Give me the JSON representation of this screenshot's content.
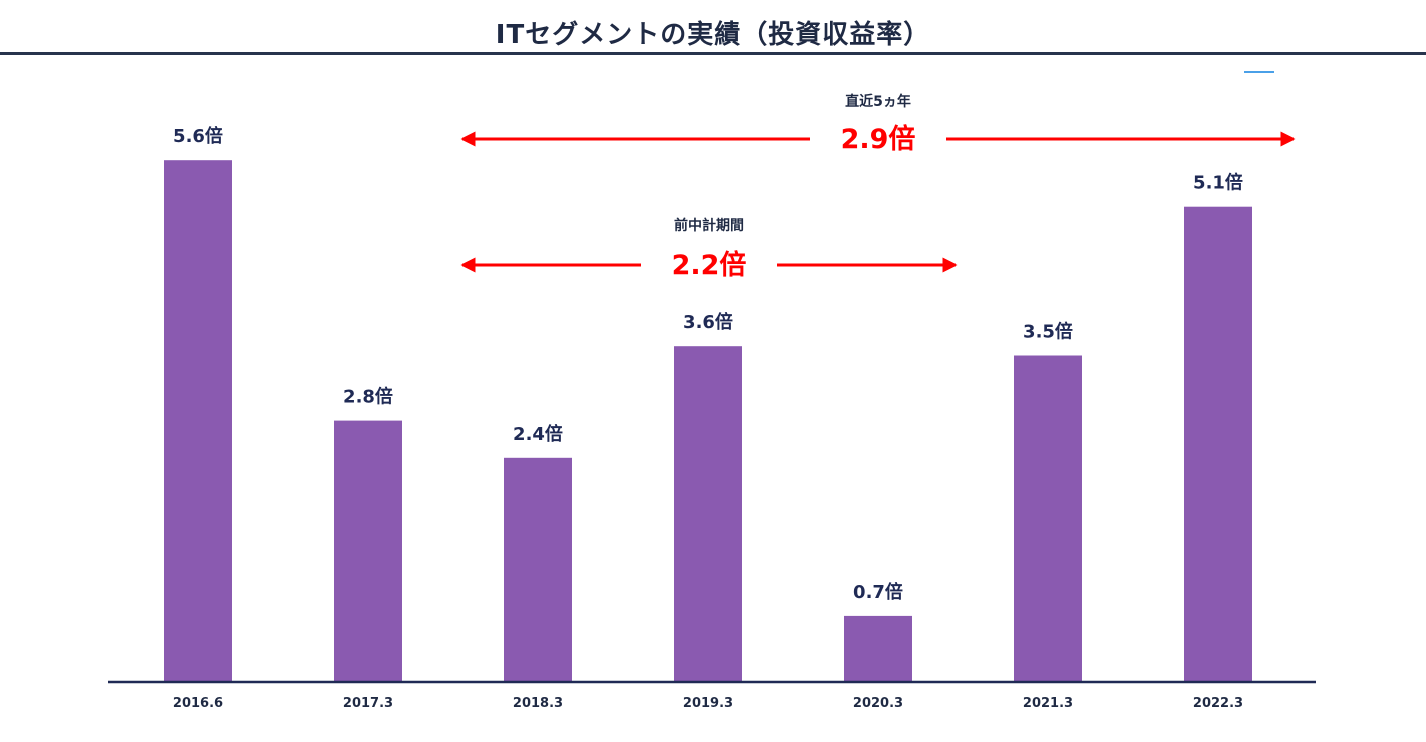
{
  "header": {
    "title": "ITセグメントの実績（投資収益率）"
  },
  "colors": {
    "bar": "#8a5ab0",
    "axis": "#1f2a55",
    "annotation": "#ff0000",
    "text": "#1f2a44",
    "accent_dash": "#4aa0e8"
  },
  "chart_data": {
    "type": "bar",
    "title": "ITセグメントの実績（投資収益率）",
    "xlabel": "",
    "ylabel": "",
    "categories": [
      "2016.6",
      "2017.3",
      "2018.3",
      "2019.3",
      "2020.3",
      "2021.3",
      "2022.3"
    ],
    "values": [
      5.6,
      2.8,
      2.4,
      3.6,
      0.7,
      3.5,
      5.1
    ],
    "data_labels": [
      "5.6倍",
      "2.8倍",
      "2.4倍",
      "3.6倍",
      "0.7倍",
      "3.5倍",
      "5.1倍"
    ],
    "ylim": [
      0,
      6.4
    ],
    "grid": false,
    "legend": "none",
    "annotations": [
      {
        "label": "直近5ヵ年",
        "value_text": "2.9倍",
        "from": "2017.3",
        "to": "2022.3"
      },
      {
        "label": "前中計期間",
        "value_text": "2.2倍",
        "from": "2017.3",
        "to": "2020.3"
      }
    ]
  }
}
